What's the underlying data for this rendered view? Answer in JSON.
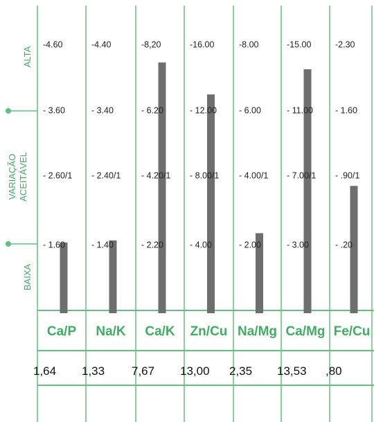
{
  "chart_data": {
    "type": "bar",
    "title": "",
    "band_labels": {
      "high": "ALTA",
      "acceptable": [
        "VARIAÇÃO",
        "ACEITÁVEL"
      ],
      "low": "BAIXA"
    },
    "categories": [
      "Ca/P",
      "Na/K",
      "Ca/K",
      "Zn/Cu",
      "Na/Mg",
      "Ca/Mg",
      "Fe/Cu"
    ],
    "columns": [
      {
        "ticks": [
          "-4.60",
          "- 3.60",
          "- 2.60/1",
          "- 1.60"
        ],
        "tick_values": [
          4.6,
          3.6,
          2.6,
          1.6
        ]
      },
      {
        "ticks": [
          "-4.40",
          "- 3.40",
          "- 2.40/1",
          "- 1.40"
        ],
        "tick_values": [
          4.4,
          3.4,
          2.4,
          1.4
        ]
      },
      {
        "ticks": [
          "-8,20",
          "- 6.20",
          "- 4.20/1",
          "- 2.20"
        ],
        "tick_values": [
          8.2,
          6.2,
          4.2,
          2.2
        ]
      },
      {
        "ticks": [
          "-16.00",
          "- 12.00",
          "- 8.00/1",
          "- 4.00"
        ],
        "tick_values": [
          16,
          12,
          8,
          4
        ]
      },
      {
        "ticks": [
          "-8.00",
          "- 6.00",
          "- 4.00/1",
          "- 2.00"
        ],
        "tick_values": [
          8,
          6,
          4,
          2
        ]
      },
      {
        "ticks": [
          "-15.00",
          "- 11.00",
          "- 7.00/1",
          "- 3.00"
        ],
        "tick_values": [
          15,
          11,
          7,
          3
        ]
      },
      {
        "ticks": [
          "-2.30",
          "- 1.60",
          "- .90/1",
          "- .20"
        ],
        "tick_values": [
          2.3,
          1.6,
          0.9,
          0.2
        ]
      }
    ],
    "value_labels": [
      "1,64",
      "1,33",
      "7,67",
      "13,00",
      "2,35",
      "13,53",
      ",80"
    ],
    "values": [
      1.64,
      1.33,
      7.67,
      13.0,
      2.35,
      13.53,
      0.8
    ],
    "colors": {
      "grid": "#63c17f",
      "label": "#3fae62",
      "bar": "#6e6e6e"
    }
  }
}
